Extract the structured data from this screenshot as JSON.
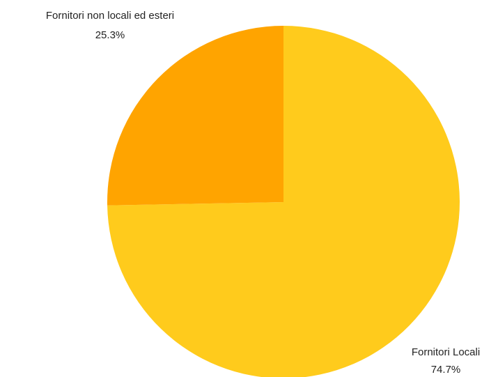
{
  "chart_data": {
    "type": "pie",
    "title": "",
    "slices": [
      {
        "label": "Fornitori Locali",
        "percent_label": "74.7%",
        "value": 74.7,
        "color": "#FFCB1C"
      },
      {
        "label": "Fornitori non locali ed esteri",
        "percent_label": "25.3%",
        "value": 25.3,
        "color": "#FFA400"
      }
    ],
    "start_angle_deg": 0,
    "direction": "clockwise",
    "legend": "none"
  }
}
